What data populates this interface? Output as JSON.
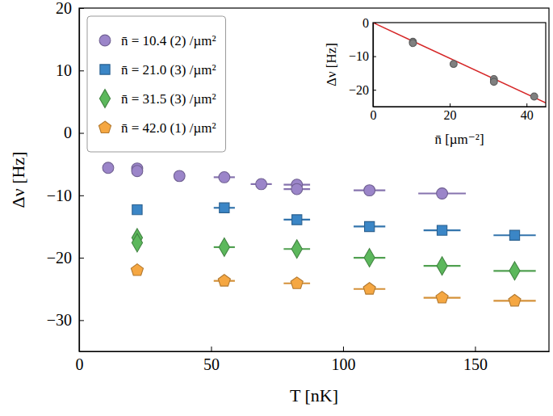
{
  "chart_data": [
    {
      "type": "scatter",
      "xlabel": "T [nK]",
      "ylabel": "Δν [Hz]",
      "xlim": [
        0,
        178
      ],
      "ylim": [
        -35,
        20
      ],
      "xticks": [
        0,
        50,
        100,
        150
      ],
      "yticks": [
        -30,
        -20,
        -10,
        0,
        10,
        20
      ],
      "legend": "upper left",
      "grid": false,
      "series": [
        {
          "name": "n̄ = 10.4 (2) /µm²",
          "color": "#9b85c9",
          "marker": "circle",
          "x": [
            11,
            22,
            22,
            38,
            55,
            69,
            82.5,
            82.5,
            110,
            137.5
          ],
          "values": [
            -5.6,
            -5.7,
            -6.1,
            -6.9,
            -7.1,
            -8.2,
            -8.3,
            -9.0,
            -9.2,
            -9.7
          ],
          "xerr": [
            0,
            0,
            0,
            0,
            4,
            4,
            5,
            5,
            6,
            9
          ]
        },
        {
          "name": "n̄ = 21.0 (3) /µm²",
          "color": "#3b86c6",
          "marker": "square",
          "x": [
            22,
            55,
            82.5,
            110,
            137.5,
            165
          ],
          "values": [
            -12.3,
            -12.0,
            -13.9,
            -15.0,
            -15.6,
            -16.4
          ],
          "xerr": [
            0,
            4,
            5,
            6,
            7,
            8
          ]
        },
        {
          "name": "n̄ = 31.5 (3) /µm²",
          "color": "#5cb85c",
          "marker": "diamond",
          "x": [
            22,
            22,
            55,
            82.5,
            110,
            137.5,
            165
          ],
          "values": [
            -16.8,
            -17.6,
            -18.3,
            -18.6,
            -20.0,
            -21.3,
            -22.1
          ],
          "xerr": [
            0,
            0,
            4,
            5,
            6,
            7,
            8
          ]
        },
        {
          "name": "n̄ = 42.0 (1) /µm²",
          "color": "#f5a742",
          "marker": "pentagon",
          "x": [
            22,
            55,
            82.5,
            110,
            137.5,
            165
          ],
          "values": [
            -22.0,
            -23.7,
            -24.1,
            -25.0,
            -26.4,
            -26.9
          ],
          "xerr": [
            0,
            4,
            5,
            6,
            7,
            8
          ]
        }
      ]
    },
    {
      "type": "scatter",
      "xlabel": "n̄ [µm⁻²]",
      "ylabel": "Δν [Hz]",
      "xlim": [
        0,
        45
      ],
      "ylim": [
        -25,
        0
      ],
      "xticks": [
        0,
        20,
        40
      ],
      "yticks": [
        -20,
        -10,
        0
      ],
      "grid": false,
      "series": [
        {
          "type": "line",
          "color": "#d62728",
          "line_style": "solid",
          "x": [
            0,
            45
          ],
          "values": [
            0,
            -23.9
          ]
        },
        {
          "type": "scatter",
          "color": "#808080",
          "marker": "circle",
          "x": [
            10.4,
            10.4,
            21,
            31.5,
            31.5,
            42
          ],
          "values": [
            -5.7,
            -6.1,
            -12.3,
            -16.8,
            -17.6,
            -22.0
          ]
        }
      ]
    }
  ]
}
